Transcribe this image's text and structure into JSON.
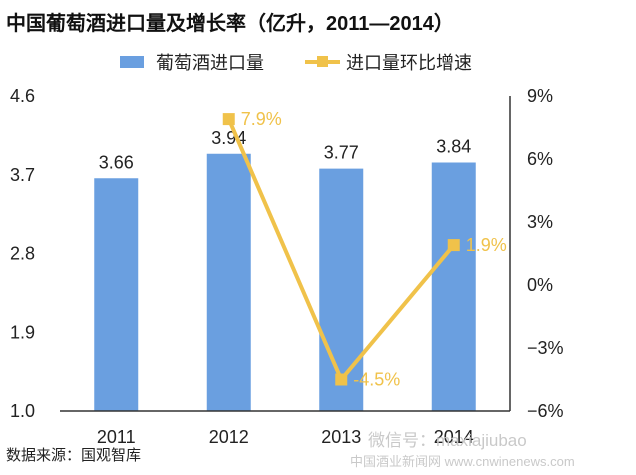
{
  "chart_data": {
    "type": "bar",
    "title": "中国葡萄酒进口量及增长率（亿升，2011—2014）",
    "categories": [
      "2011",
      "2012",
      "2013",
      "2014"
    ],
    "series": [
      {
        "name": "葡萄酒进口量",
        "type": "bar",
        "axis": "left",
        "values": [
          3.66,
          3.94,
          3.77,
          3.84
        ],
        "labels": [
          "3.66",
          "3.94",
          "3.77",
          "3.84"
        ],
        "color": "#6a9fe0"
      },
      {
        "name": "进口量环比增速",
        "type": "line",
        "axis": "right",
        "values": [
          null,
          7.9,
          -4.5,
          1.9
        ],
        "labels": [
          "",
          "7.9%",
          "-4.5%",
          "1.9%"
        ],
        "color": "#f0c24a"
      }
    ],
    "y_left": {
      "min": 1.0,
      "max": 4.6,
      "ticks": [
        "1.0",
        "1.9",
        "2.8",
        "3.7",
        "4.6"
      ]
    },
    "y_right": {
      "min": -6,
      "max": 9,
      "ticks": [
        "9%",
        "6%",
        "3%",
        "0%",
        "−3%",
        "−6%"
      ]
    },
    "legend_position": "top",
    "grid": false
  },
  "source": "数据来源：国观智库",
  "watermark": {
    "line1": "微信号：maxiajiubao",
    "line2": "中国酒业新闻网 www.cnwinenews.com"
  }
}
